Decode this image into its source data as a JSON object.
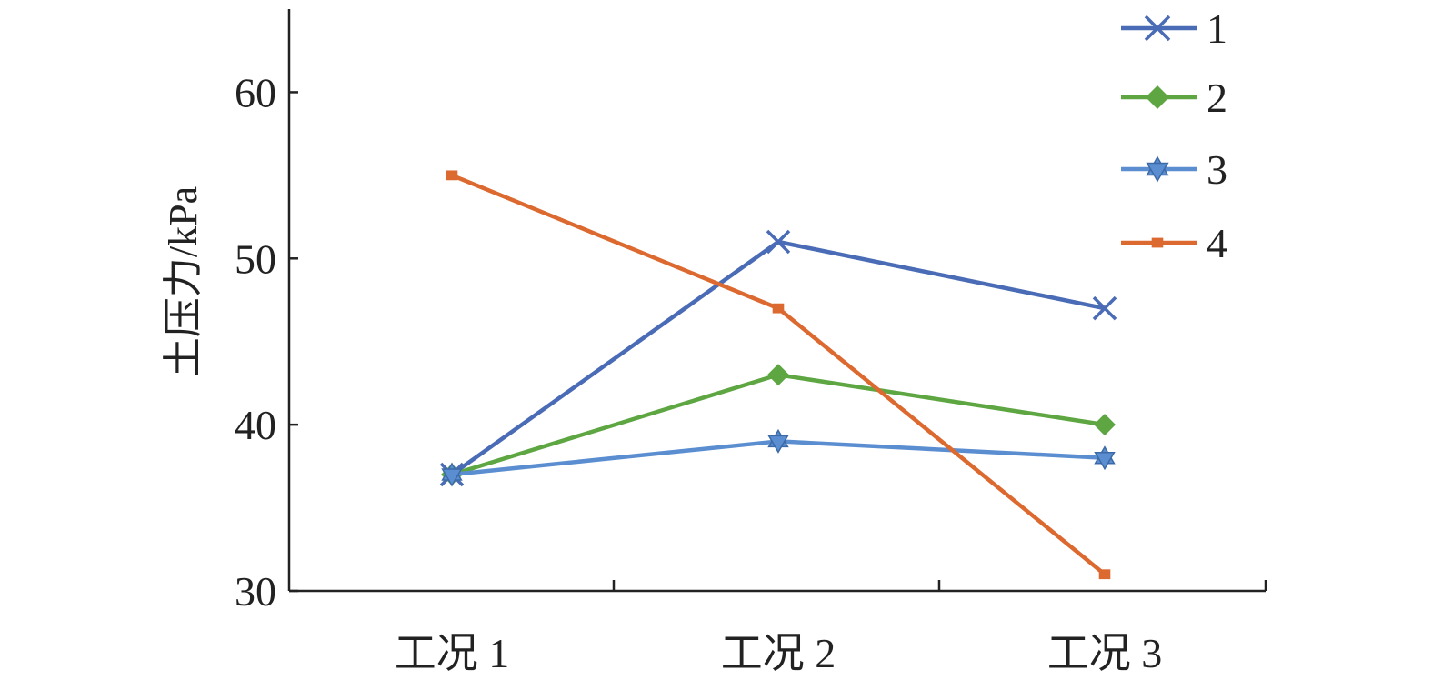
{
  "chart_data": {
    "type": "line",
    "title": "",
    "xlabel": "",
    "ylabel": "土压力/kPa",
    "categories": [
      "工况 1",
      "工况 2",
      "工况 3"
    ],
    "ylim": [
      30,
      65
    ],
    "yticks": [
      30,
      40,
      50,
      60
    ],
    "grid": false,
    "legend_position": "top-right",
    "series": [
      {
        "name": "1",
        "values": [
          37,
          51,
          47
        ],
        "color": "#4a6bb5",
        "marker": "x"
      },
      {
        "name": "2",
        "values": [
          37,
          43,
          40
        ],
        "color": "#5da642",
        "marker": "diamond"
      },
      {
        "name": "3",
        "values": [
          37,
          39,
          38
        ],
        "color": "#5b8ed0",
        "marker": "star"
      },
      {
        "name": "4",
        "values": [
          55,
          47,
          31
        ],
        "color": "#dc6a30",
        "marker": "square"
      }
    ]
  }
}
